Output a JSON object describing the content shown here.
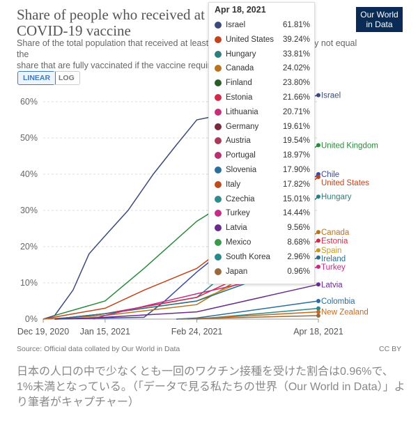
{
  "title": "Share of people who received at least one dose of\nCOVID-19 vaccine",
  "subtitle": "Share of the total population that received at least one vaccine dose. This may not equal the\nshare that are fully vaccinated if the vaccine requires two doses.",
  "logo": "Our World\nin Data",
  "toggle": {
    "linear": "LINEAR",
    "log": "LOG"
  },
  "source": "Source: Official data collated by Our World in Data",
  "license": "CC BY",
  "caption": "日本の人口の中で少なくとも一回のワクチン接種を受けた割合は0.96%で、1%未満となっている。（「データで見る私たちの世界（Our World in Data）」より筆者がキャプチャー）",
  "tooltip": {
    "date": "Apr 18, 2021",
    "rows": [
      {
        "name": "Israel",
        "value": "61.81%",
        "color": "#3b4a7a"
      },
      {
        "name": "United States",
        "value": "39.24%",
        "color": "#c0441c"
      },
      {
        "name": "Hungary",
        "value": "33.81%",
        "color": "#2e7f7a"
      },
      {
        "name": "Canada",
        "value": "24.02%",
        "color": "#b8731c"
      },
      {
        "name": "Finland",
        "value": "23.80%",
        "color": "#2a5d28"
      },
      {
        "name": "Estonia",
        "value": "21.66%",
        "color": "#d22b4a"
      },
      {
        "name": "Lithuania",
        "value": "20.71%",
        "color": "#c4307a"
      },
      {
        "name": "Germany",
        "value": "19.61%",
        "color": "#7a2a3c"
      },
      {
        "name": "Austria",
        "value": "19.54%",
        "color": "#a83a5a"
      },
      {
        "name": "Portugal",
        "value": "18.97%",
        "color": "#b83070"
      },
      {
        "name": "Slovenia",
        "value": "17.90%",
        "color": "#2a6e9c"
      },
      {
        "name": "Italy",
        "value": "17.82%",
        "color": "#b8501c"
      },
      {
        "name": "Czechia",
        "value": "15.01%",
        "color": "#2e8c8c"
      },
      {
        "name": "Turkey",
        "value": "14.44%",
        "color": "#c42c8a"
      },
      {
        "name": "Latvia",
        "value": "9.56%",
        "color": "#6a2c8c"
      },
      {
        "name": "Mexico",
        "value": "8.68%",
        "color": "#3a9a4a"
      },
      {
        "name": "South Korea",
        "value": "2.96%",
        "color": "#2a8a8a"
      },
      {
        "name": "Japan",
        "value": "0.96%",
        "color": "#9a6a3a"
      }
    ]
  },
  "chart_data": {
    "type": "line",
    "title": "Share of people who received at least one dose of COVID-19 vaccine",
    "x_ticks": [
      "Dec 19, 2020",
      "Jan 15, 2021",
      "Feb 24, 2021",
      "Apr 18, 2021"
    ],
    "y_ticks": [
      "0%",
      "10%",
      "20%",
      "30%",
      "40%",
      "50%",
      "60%"
    ],
    "ylim": [
      0,
      65
    ],
    "grid": "horizontal dashed",
    "series": [
      {
        "name": "Israel",
        "color": "#3b4a7a",
        "x": [
          "Dec 19, 2020",
          "Dec 24, 2020",
          "Jan 1, 2021",
          "Jan 8, 2021",
          "Jan 15, 2021",
          "Jan 25, 2021",
          "Feb 5, 2021",
          "Feb 15, 2021",
          "Feb 24, 2021",
          "Apr 18, 2021"
        ],
        "y": [
          0,
          1,
          8,
          18,
          23,
          30,
          40,
          48,
          55,
          61.81
        ]
      },
      {
        "name": "United Kingdom",
        "color": "#2a8a3a",
        "x": [
          "Dec 24, 2020",
          "Jan 15, 2021",
          "Feb 1, 2021",
          "Feb 24, 2021",
          "Apr 18, 2021"
        ],
        "y": [
          1,
          5,
          14,
          27,
          48
        ]
      },
      {
        "name": "Chile",
        "color": "#3b4a9a",
        "x": [
          "Dec 24, 2020",
          "Feb 1, 2021",
          "Feb 10, 2021",
          "Feb 24, 2021",
          "Apr 18, 2021"
        ],
        "y": [
          0,
          0.5,
          5,
          13,
          40
        ]
      },
      {
        "name": "United States",
        "color": "#c0441c",
        "x": [
          "Dec 19, 2020",
          "Jan 15, 2021",
          "Feb 1, 2021",
          "Feb 24, 2021",
          "Apr 18, 2021"
        ],
        "y": [
          0,
          3,
          8,
          14,
          39.24
        ]
      },
      {
        "name": "Hungary",
        "color": "#2e7f7a",
        "x": [
          "Dec 24, 2020",
          "Jan 15, 2021",
          "Feb 24, 2021",
          "Apr 18, 2021"
        ],
        "y": [
          0,
          1.5,
          6,
          33.81
        ]
      },
      {
        "name": "Canada",
        "color": "#b8731c",
        "x": [
          "Dec 19, 2020",
          "Jan 15, 2021",
          "Feb 24, 2021",
          "Apr 18, 2021"
        ],
        "y": [
          0,
          1,
          4,
          24.02
        ]
      },
      {
        "name": "Estonia",
        "color": "#d22b4a",
        "x": [
          "Dec 24, 2020",
          "Jan 15, 2021",
          "Feb 24, 2021",
          "Apr 18, 2021"
        ],
        "y": [
          0,
          1.5,
          6,
          21.66
        ]
      },
      {
        "name": "Spain",
        "color": "#c89a1c",
        "x": [
          "Dec 24, 2020",
          "Jan 15, 2021",
          "Feb 24, 2021",
          "Apr 18, 2021"
        ],
        "y": [
          0,
          1.5,
          5,
          19
        ]
      },
      {
        "name": "Ireland",
        "color": "#2a6e8c",
        "x": [
          "Dec 24, 2020",
          "Jan 15, 2021",
          "Feb 24, 2021",
          "Apr 18, 2021"
        ],
        "y": [
          0,
          1.5,
          5,
          17
        ]
      },
      {
        "name": "Turkey",
        "color": "#c42c8a",
        "x": [
          "Jan 10, 2021",
          "Jan 15, 2021",
          "Feb 24, 2021",
          "Apr 18, 2021"
        ],
        "y": [
          0,
          1,
          7,
          14.44
        ]
      },
      {
        "name": "Latvia",
        "color": "#6a2c8c",
        "x": [
          "Dec 24, 2020",
          "Jan 15, 2021",
          "Feb 24, 2021",
          "Apr 18, 2021"
        ],
        "y": [
          0,
          0.5,
          2,
          9.56
        ]
      },
      {
        "name": "Colombia",
        "color": "#2a6e9c",
        "x": [
          "Feb 15, 2021",
          "Feb 24, 2021",
          "Apr 18, 2021"
        ],
        "y": [
          0,
          0.3,
          5
        ]
      },
      {
        "name": "South Korea",
        "color": "#2a8a8a",
        "x": [
          "Feb 24, 2021",
          "Apr 18, 2021"
        ],
        "y": [
          0,
          2.96
        ]
      },
      {
        "name": "New Zealand",
        "color": "#c86a1c",
        "x": [
          "Feb 20, 2021",
          "Apr 18, 2021"
        ],
        "y": [
          0,
          2
        ]
      },
      {
        "name": "Japan",
        "color": "#9a6a3a",
        "x": [
          "Feb 17, 2021",
          "Apr 18, 2021"
        ],
        "y": [
          0,
          0.96
        ]
      }
    ],
    "end_labels": [
      "Israel",
      "United Kingdom",
      "Chile",
      "United States",
      "Hungary",
      "Canada",
      "Estonia",
      "Spain",
      "Ireland",
      "Turkey",
      "Latvia",
      "Colombia",
      "New Zealand"
    ]
  }
}
